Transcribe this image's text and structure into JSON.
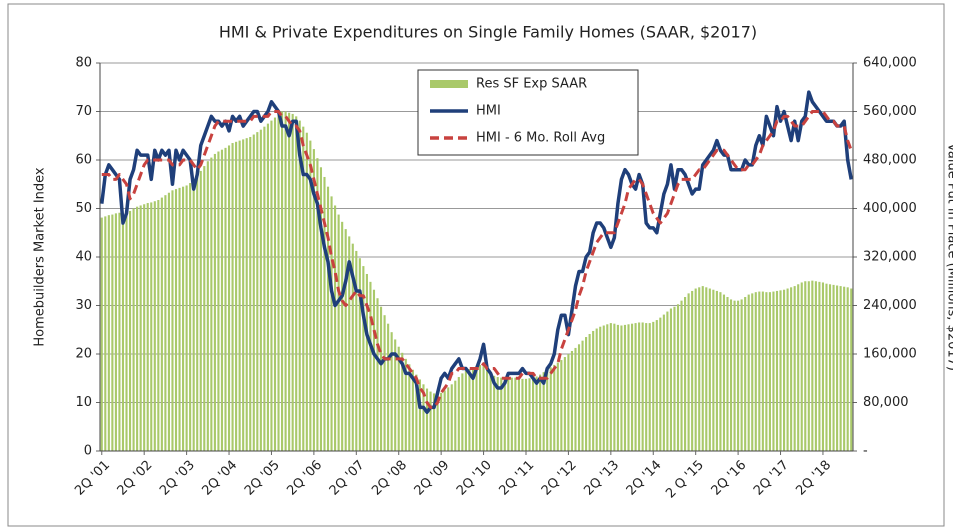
{
  "chart_data": {
    "type": "bar-line",
    "title": "HMI & Private Expenditures on Single Family Homes (SAAR, $2017)",
    "y_label": "Homebuilders Market Index",
    "y2_label": "Value Put in Place (Millions, $2017)",
    "categories": [
      "2Q '01",
      null,
      null,
      null,
      null,
      null,
      null,
      null,
      null,
      null,
      null,
      null,
      "2Q '02",
      null,
      null,
      null,
      null,
      null,
      null,
      null,
      null,
      null,
      null,
      null,
      "2Q '03",
      null,
      null,
      null,
      null,
      null,
      null,
      null,
      null,
      null,
      null,
      null,
      "2Q '04",
      null,
      null,
      null,
      null,
      null,
      null,
      null,
      null,
      null,
      null,
      null,
      "2Q '05",
      null,
      null,
      null,
      null,
      null,
      null,
      null,
      null,
      null,
      null,
      null,
      "2Q '06",
      null,
      null,
      null,
      null,
      null,
      null,
      null,
      null,
      null,
      null,
      null,
      "2Q '07",
      null,
      null,
      null,
      null,
      null,
      null,
      null,
      null,
      null,
      null,
      null,
      "2Q '08",
      null,
      null,
      null,
      null,
      null,
      null,
      null,
      null,
      null,
      null,
      null,
      "2Q '09",
      null,
      null,
      null,
      null,
      null,
      null,
      null,
      null,
      null,
      null,
      null,
      "2Q '10",
      null,
      null,
      null,
      null,
      null,
      null,
      null,
      null,
      null,
      null,
      null,
      "2Q '11",
      null,
      null,
      null,
      null,
      null,
      null,
      null,
      null,
      null,
      null,
      null,
      "2Q '12",
      null,
      null,
      null,
      null,
      null,
      null,
      null,
      null,
      null,
      null,
      null,
      "2Q '13",
      null,
      null,
      null,
      null,
      null,
      null,
      null,
      null,
      null,
      null,
      null,
      "2Q '14",
      null,
      null,
      null,
      null,
      null,
      null,
      null,
      null,
      null,
      null,
      null,
      "2 Q '15",
      null,
      null,
      null,
      null,
      null,
      null,
      null,
      null,
      null,
      null,
      null,
      "2Q '16",
      null,
      null,
      null,
      null,
      null,
      null,
      null,
      null,
      null,
      null,
      null,
      "2Q '17",
      null,
      null,
      null,
      null,
      null,
      null,
      null,
      null,
      null,
      null,
      null,
      "2Q '18",
      null,
      null,
      null,
      null,
      null,
      null,
      null,
      null
    ],
    "series": [
      {
        "name": "Res SF Exp SAAR",
        "color": "#a9c96a",
        "axis": "y2",
        "kind": "bar",
        "values": [
          385000,
          387000,
          389000,
          390000,
          392000,
          393000,
          392000,
          394000,
          396000,
          400000,
          403000,
          405000,
          407000,
          409000,
          410000,
          412000,
          414000,
          418000,
          422000,
          426000,
          430000,
          432000,
          434000,
          436000,
          438000,
          442000,
          448000,
          455000,
          462000,
          470000,
          478000,
          484000,
          490000,
          494000,
          497000,
          500000,
          504000,
          508000,
          510000,
          512000,
          514000,
          516000,
          518000,
          522000,
          526000,
          530000,
          535000,
          540000,
          545000,
          550000,
          556000,
          560000,
          560000,
          558000,
          556000,
          552000,
          545000,
          535000,
          525000,
          512000,
          498000,
          483000,
          468000,
          452000,
          436000,
          420000,
          405000,
          390000,
          378000,
          366000,
          354000,
          342000,
          330000,
          318000,
          305000,
          292000,
          279000,
          266000,
          252000,
          238000,
          224000,
          210000,
          196000,
          184000,
          172000,
          162000,
          152000,
          143000,
          134000,
          126000,
          118000,
          110000,
          103000,
          98000,
          95000,
          94000,
          96000,
          100000,
          105000,
          110000,
          116000,
          122000,
          128000,
          132000,
          135000,
          138000,
          140000,
          142000,
          140000,
          134000,
          128000,
          124000,
          122000,
          121000,
          120000,
          120000,
          121000,
          121000,
          120000,
          119000,
          119000,
          120000,
          121000,
          123000,
          126000,
          130000,
          134000,
          138000,
          142000,
          146000,
          150000,
          155000,
          160000,
          165000,
          170000,
          176000,
          182000,
          188000,
          193000,
          198000,
          202000,
          205000,
          207000,
          209000,
          211000,
          210000,
          208000,
          207000,
          208000,
          209000,
          210000,
          211000,
          212000,
          212000,
          211000,
          211000,
          213000,
          216000,
          220000,
          225000,
          230000,
          235000,
          238000,
          242000,
          248000,
          254000,
          260000,
          264000,
          268000,
          270000,
          272000,
          270000,
          268000,
          266000,
          264000,
          262000,
          258000,
          254000,
          250000,
          248000,
          248000,
          250000,
          254000,
          258000,
          260000,
          262000,
          263000,
          263000,
          262000,
          262000,
          263000,
          264000,
          265000,
          266000,
          268000,
          270000,
          272000,
          275000,
          278000,
          280000,
          280000,
          281000,
          280000,
          279000,
          278000,
          276000,
          275000,
          274000,
          273000,
          272000,
          271000,
          270000,
          268000
        ]
      },
      {
        "name": "HMI",
        "color": "#1f3f7a",
        "kind": "line",
        "line_style": "solid",
        "values": [
          51,
          57,
          59,
          58,
          57,
          56,
          47,
          49,
          56,
          58,
          62,
          61,
          61,
          61,
          56,
          62,
          60,
          62,
          61,
          62,
          55,
          62,
          60,
          62,
          61,
          60,
          54,
          57,
          63,
          65,
          67,
          69,
          68,
          68,
          67,
          68,
          66,
          69,
          68,
          69,
          67,
          68,
          69,
          70,
          70,
          68,
          69,
          70,
          72,
          71,
          70,
          67,
          67,
          65,
          68,
          68,
          61,
          57,
          57,
          56,
          53,
          51,
          46,
          42,
          39,
          33,
          30,
          31,
          32,
          35,
          39,
          36,
          33,
          33,
          28,
          24,
          22,
          20,
          19,
          18,
          19,
          19,
          20,
          20,
          19,
          18,
          16,
          16,
          15,
          14,
          9,
          9,
          8,
          9,
          9,
          12,
          15,
          16,
          15,
          17,
          18,
          19,
          17,
          17,
          16,
          15,
          17,
          19,
          22,
          17,
          16,
          14,
          13,
          13,
          14,
          16,
          16,
          16,
          16,
          17,
          16,
          16,
          15,
          14,
          15,
          14,
          17,
          18,
          20,
          25,
          28,
          28,
          24,
          29,
          34,
          37,
          37,
          40,
          41,
          45,
          47,
          47,
          46,
          44,
          42,
          44,
          51,
          56,
          58,
          57,
          55,
          54,
          57,
          55,
          47,
          46,
          46,
          45,
          49,
          53,
          55,
          59,
          54,
          58,
          58,
          57,
          55,
          53,
          54,
          54,
          59,
          60,
          61,
          62,
          64,
          62,
          61,
          61,
          58,
          58,
          58,
          58,
          60,
          59,
          59,
          63,
          65,
          63,
          69,
          67,
          65,
          71,
          68,
          70,
          67,
          64,
          68,
          64,
          68,
          69,
          74,
          72,
          71,
          70,
          69,
          68,
          68,
          68,
          67,
          67,
          68,
          60,
          56
        ]
      },
      {
        "name": "HMI - 6 Mo. Roll Avg",
        "color": "#c8423f",
        "kind": "line",
        "line_style": "dashed",
        "values": [
          57,
          57,
          57,
          56,
          56,
          57,
          56,
          55,
          52,
          53,
          55,
          57,
          59,
          60,
          60,
          60,
          60,
          60,
          60,
          60,
          59,
          59,
          59,
          60,
          60,
          60,
          59,
          58,
          59,
          61,
          63,
          65,
          67,
          68,
          68,
          68,
          68,
          68,
          68,
          68,
          68,
          68,
          68,
          69,
          69,
          69,
          69,
          69,
          70,
          70,
          70,
          69,
          69,
          68,
          67,
          67,
          66,
          63,
          61,
          59,
          56,
          53,
          50,
          47,
          44,
          40,
          37,
          33,
          31,
          30,
          31,
          32,
          33,
          32,
          32,
          30,
          28,
          25,
          22,
          20,
          19,
          19,
          19,
          19,
          19,
          19,
          18,
          17,
          16,
          15,
          13,
          12,
          10,
          9,
          9,
          10,
          12,
          13,
          14,
          16,
          16,
          17,
          17,
          17,
          17,
          17,
          17,
          17,
          18,
          17,
          17,
          17,
          16,
          15,
          15,
          15,
          15,
          15,
          15,
          16,
          16,
          16,
          16,
          15,
          15,
          15,
          15,
          16,
          17,
          18,
          21,
          23,
          25,
          27,
          29,
          32,
          34,
          37,
          39,
          41,
          43,
          44,
          45,
          45,
          45,
          45,
          47,
          49,
          51,
          54,
          55,
          56,
          56,
          55,
          53,
          51,
          49,
          48,
          47,
          48,
          49,
          51,
          53,
          55,
          56,
          56,
          56,
          56,
          57,
          58,
          58,
          59,
          60,
          61,
          62,
          62,
          62,
          61,
          60,
          59,
          58,
          58,
          58,
          59,
          59,
          60,
          61,
          63,
          64,
          65,
          66,
          68,
          68,
          69,
          69,
          68,
          67,
          67,
          67,
          68,
          69,
          70,
          70,
          70,
          70,
          69,
          68,
          68,
          67,
          67,
          67,
          64,
          62
        ]
      }
    ],
    "ylim": [
      0,
      80
    ],
    "yticks": [
      0,
      10,
      20,
      30,
      40,
      50,
      60,
      70,
      80
    ],
    "y2lim": [
      0,
      640000
    ],
    "y2ticks": [
      {
        "value": 0,
        "label": "-"
      },
      {
        "value": 80000,
        "label": "80,000"
      },
      {
        "value": 160000,
        "label": "160,000"
      },
      {
        "value": 240000,
        "label": "240,000"
      },
      {
        "value": 320000,
        "label": "320,000"
      },
      {
        "value": 400000,
        "label": "400,000"
      },
      {
        "value": 480000,
        "label": "480,000"
      },
      {
        "value": 560000,
        "label": "560,000"
      },
      {
        "value": 640000,
        "label": "640,000"
      }
    ],
    "grid": true,
    "legend": "top"
  }
}
